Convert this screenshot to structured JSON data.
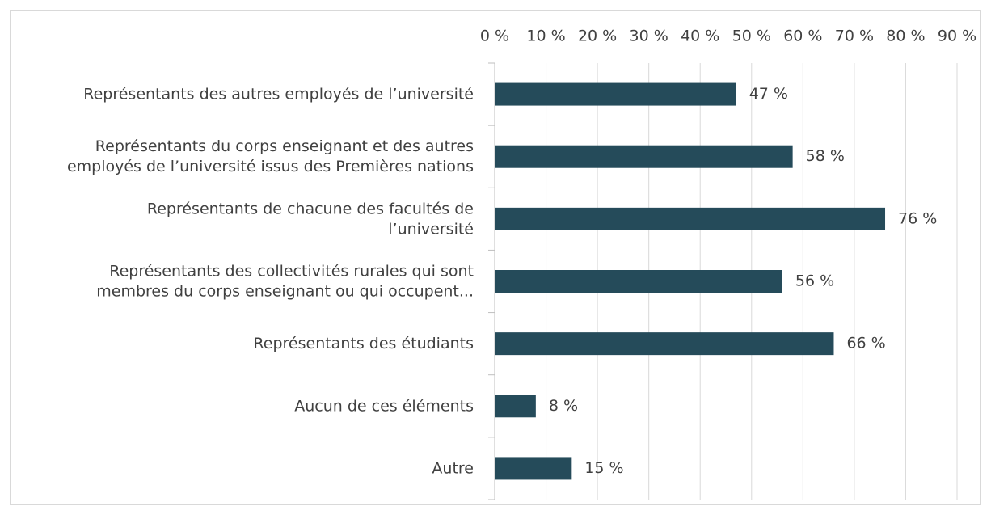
{
  "chart_data": {
    "type": "bar",
    "orientation": "horizontal",
    "categories": [
      "Représentants des autres employés de l’université",
      "Représentants du corps enseignant et des autres\nemployés de l’université issus des Premières nations",
      "Représentants de chacune des facultés de\nl’université",
      "Représentants des collectivités rurales qui sont\nmembres du corps enseignant ou qui occupent...",
      "Représentants des étudiants",
      "Aucun de ces éléments",
      "Autre"
    ],
    "values": [
      47,
      58,
      76,
      56,
      66,
      8,
      15
    ],
    "value_labels": [
      "47 %",
      "58 %",
      "76 %",
      "56 %",
      "66 %",
      "8 %",
      "15 %"
    ],
    "color": "#254b5a",
    "xlim": [
      0,
      90
    ],
    "xticks": [
      {
        "value": 0,
        "label": "0 %"
      },
      {
        "value": 10,
        "label": "10 %"
      },
      {
        "value": 20,
        "label": "20 %"
      },
      {
        "value": 30,
        "label": "30 %"
      },
      {
        "value": 40,
        "label": "40 %"
      },
      {
        "value": 50,
        "label": "50 %"
      },
      {
        "value": 60,
        "label": "60 %"
      },
      {
        "value": 70,
        "label": "70 %"
      },
      {
        "value": 80,
        "label": "80 %"
      },
      {
        "value": 90,
        "label": "90 %"
      }
    ],
    "grid": true
  }
}
